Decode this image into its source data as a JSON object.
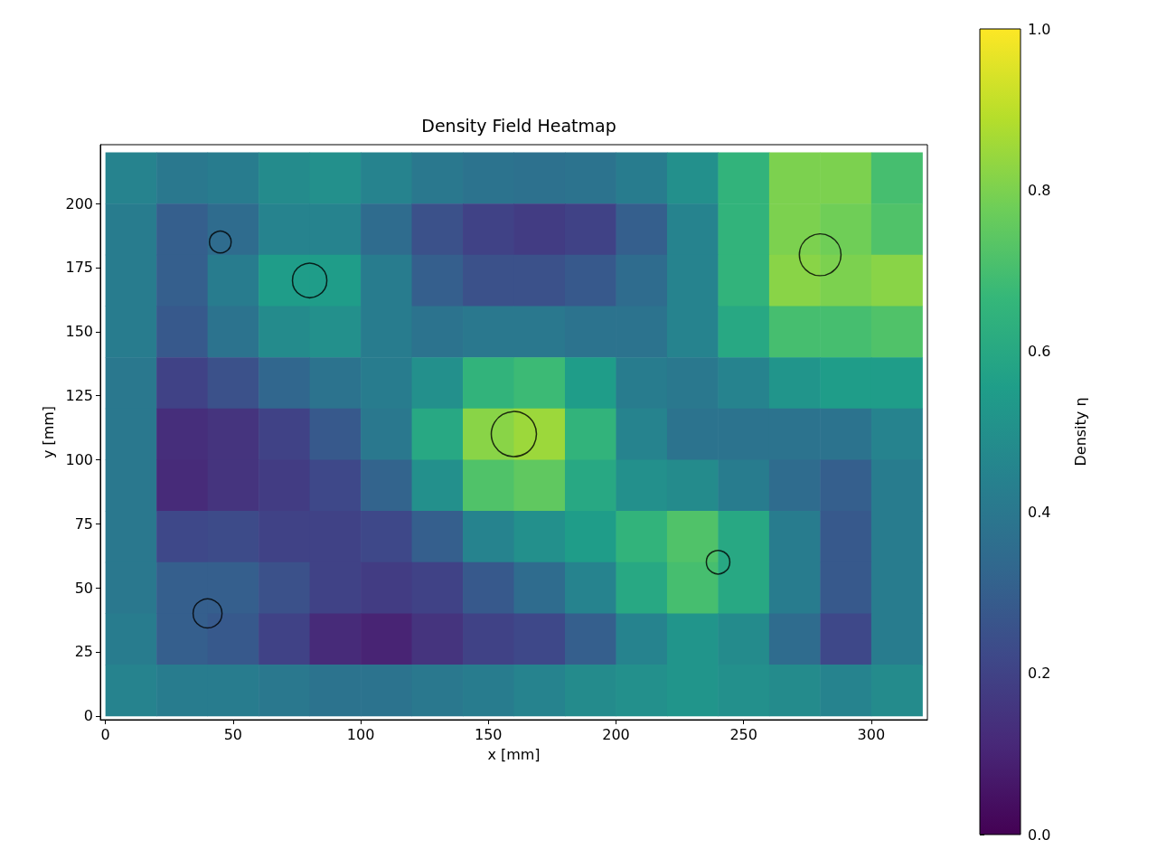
{
  "chart_data": {
    "type": "heatmap",
    "title": "Density Field Heatmap",
    "xlabel": "x [mm]",
    "ylabel": "y [mm]",
    "clabel": "Density η",
    "x": [
      10,
      30,
      50,
      70,
      90,
      110,
      130,
      150,
      170,
      190,
      210,
      230,
      250,
      270,
      290,
      310
    ],
    "y": [
      210,
      190,
      170,
      150,
      130,
      110,
      90,
      70,
      50,
      30,
      10
    ],
    "cells": [
      [
        0.45,
        0.4,
        0.42,
        0.48,
        0.5,
        0.45,
        0.4,
        0.38,
        0.37,
        0.38,
        0.42,
        0.5,
        0.65,
        0.8,
        0.8,
        0.7
      ],
      [
        0.42,
        0.3,
        0.35,
        0.45,
        0.45,
        0.35,
        0.25,
        0.2,
        0.18,
        0.2,
        0.3,
        0.45,
        0.65,
        0.8,
        0.78,
        0.72
      ],
      [
        0.42,
        0.3,
        0.42,
        0.55,
        0.55,
        0.42,
        0.3,
        0.25,
        0.25,
        0.28,
        0.35,
        0.45,
        0.65,
        0.82,
        0.8,
        0.82
      ],
      [
        0.42,
        0.28,
        0.38,
        0.48,
        0.5,
        0.42,
        0.38,
        0.4,
        0.4,
        0.38,
        0.38,
        0.45,
        0.6,
        0.7,
        0.7,
        0.72
      ],
      [
        0.4,
        0.2,
        0.25,
        0.33,
        0.38,
        0.42,
        0.5,
        0.65,
        0.68,
        0.55,
        0.42,
        0.4,
        0.45,
        0.52,
        0.55,
        0.55
      ],
      [
        0.4,
        0.13,
        0.15,
        0.2,
        0.28,
        0.4,
        0.6,
        0.82,
        0.85,
        0.65,
        0.45,
        0.38,
        0.38,
        0.38,
        0.38,
        0.45
      ],
      [
        0.4,
        0.12,
        0.15,
        0.18,
        0.22,
        0.32,
        0.5,
        0.72,
        0.75,
        0.6,
        0.5,
        0.48,
        0.42,
        0.35,
        0.3,
        0.42
      ],
      [
        0.4,
        0.22,
        0.23,
        0.2,
        0.2,
        0.22,
        0.3,
        0.45,
        0.5,
        0.55,
        0.65,
        0.72,
        0.6,
        0.42,
        0.28,
        0.42
      ],
      [
        0.4,
        0.3,
        0.3,
        0.25,
        0.2,
        0.18,
        0.2,
        0.28,
        0.35,
        0.45,
        0.6,
        0.7,
        0.6,
        0.42,
        0.28,
        0.42
      ],
      [
        0.42,
        0.3,
        0.28,
        0.2,
        0.12,
        0.1,
        0.15,
        0.2,
        0.22,
        0.3,
        0.45,
        0.52,
        0.48,
        0.35,
        0.22,
        0.42
      ],
      [
        0.45,
        0.42,
        0.42,
        0.4,
        0.38,
        0.38,
        0.4,
        0.42,
        0.45,
        0.48,
        0.5,
        0.52,
        0.5,
        0.48,
        0.45,
        0.48
      ]
    ],
    "series": [
      {
        "type": "bubble",
        "color": "#000000",
        "x": [
          45,
          80,
          160,
          280,
          240,
          40
        ],
        "values": [
          185,
          170,
          110,
          180,
          60,
          40
        ],
        "sizes": [
          0.23,
          0.58,
          1,
          0.85,
          0.27,
          0.41
        ]
      }
    ],
    "clim": [
      0,
      1
    ],
    "cticks": [
      {
        "value": 0,
        "label": "0.0"
      },
      0.2,
      0.4,
      0.6,
      0.8,
      {
        "value": 1,
        "label": "1.0"
      }
    ],
    "xlim": [
      -2,
      322
    ],
    "ylim": [
      -1.5,
      223
    ],
    "xticks": [
      0,
      50,
      100,
      150,
      200,
      250,
      300
    ],
    "yticks": [
      0,
      25,
      50,
      75,
      100,
      125,
      150,
      175,
      200
    ],
    "grid": false
  }
}
